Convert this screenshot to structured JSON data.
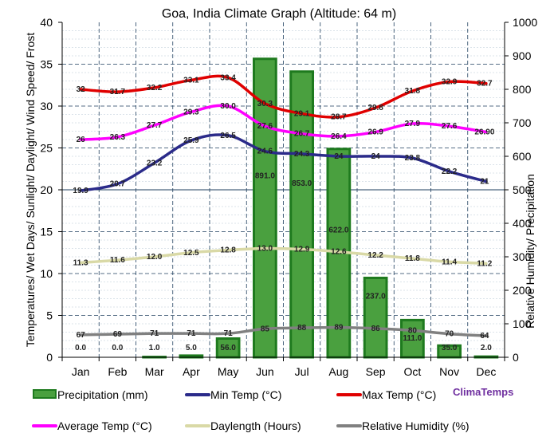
{
  "chart_data": {
    "type": "bar",
    "title": "Goa, India Climate Graph (Altitude: 64 m)",
    "ylabel_left": "Temperatures/ Wet Days/ Sunlight/ Daylight/ Wind Speed/ Frost",
    "ylabel_right": "Relative Humidity/ Precipitation",
    "categories": [
      "Jan",
      "Feb",
      "Mar",
      "Apr",
      "May",
      "Jun",
      "Jul",
      "Aug",
      "Sep",
      "Oct",
      "Nov",
      "Dec"
    ],
    "ylim_left": [
      0,
      40
    ],
    "ylim_right": [
      0,
      1000
    ],
    "yticks_left": [
      "0",
      "5",
      "10",
      "15",
      "20",
      "25",
      "30",
      "35",
      "40"
    ],
    "yticks_right": [
      "0",
      "100",
      "200",
      "300",
      "400",
      "500",
      "600",
      "700",
      "800",
      "900",
      "1000"
    ],
    "grid": true,
    "legend_position": "bottom",
    "brand": "ClimaTemps",
    "series": [
      {
        "name": "Precipitation (mm)",
        "axis": "right",
        "kind": "bar",
        "color": "#2e8b2e",
        "values": [
          0.0,
          0.0,
          1.0,
          5.0,
          56.0,
          891.0,
          853.0,
          622.0,
          237.0,
          111.0,
          35.0,
          2.0
        ],
        "labels": [
          "0.0",
          "0.0",
          "1.0",
          "5.0",
          "56.0",
          "891.0",
          "853.0",
          "622.0",
          "237.0",
          "111.0",
          "35.0",
          "2.0"
        ]
      },
      {
        "name": "Min Temp (°C)",
        "axis": "left",
        "kind": "line",
        "color": "#2b2b8a",
        "values": [
          19.9,
          20.7,
          23.2,
          25.9,
          26.5,
          24.6,
          24.3,
          24,
          24,
          23.8,
          22.2,
          21
        ],
        "labels": [
          "19.9",
          "20.7",
          "23.2",
          "25.9",
          "26.5",
          "24.6",
          "24.3",
          "24",
          "24",
          "23.8",
          "22.2",
          "21"
        ]
      },
      {
        "name": "Max Temp (°C)",
        "axis": "left",
        "kind": "line",
        "color": "#e00000",
        "values": [
          32,
          31.7,
          32.2,
          33.1,
          33.4,
          30.3,
          29.1,
          28.7,
          29.8,
          31.8,
          32.9,
          32.7
        ],
        "labels": [
          "32",
          "31.7",
          "32.2",
          "33.1",
          "33.4",
          "30.3",
          "29.1",
          "28.7",
          "29.8",
          "31.8",
          "32.9",
          "32.7"
        ]
      },
      {
        "name": "Average Temp (°C)",
        "axis": "left",
        "kind": "line",
        "color": "#ff00ff",
        "values": [
          26,
          26.3,
          27.7,
          29.3,
          30.0,
          27.6,
          26.7,
          26.4,
          26.9,
          27.9,
          27.6,
          26.9
        ],
        "labels": [
          "26",
          "26.3",
          "27.7",
          "29.3",
          "30.0",
          "27.6",
          "26.7",
          "26.4",
          "26.9",
          "27.9",
          "27.6",
          "26.90"
        ]
      },
      {
        "name": "Daylength (Hours)",
        "axis": "left",
        "kind": "line",
        "color": "#d9d9a6",
        "values": [
          11.3,
          11.6,
          12.0,
          12.5,
          12.8,
          13.0,
          12.9,
          12.6,
          12.2,
          11.8,
          11.4,
          11.2
        ],
        "labels": [
          "11.3",
          "11.6",
          "12.0",
          "12.5",
          "12.8",
          "13.0",
          "12.9",
          "12.6",
          "12.2",
          "11.8",
          "11.4",
          "11.2"
        ]
      },
      {
        "name": "Relative Humidity (%)",
        "axis": "right",
        "kind": "line",
        "color": "#808080",
        "values": [
          67,
          69,
          71,
          71,
          71,
          85,
          88,
          89,
          86,
          80,
          70,
          64
        ],
        "labels": [
          "67",
          "69",
          "71",
          "71",
          "71",
          "85",
          "88",
          "89",
          "86",
          "80",
          "70",
          "64"
        ]
      }
    ]
  }
}
